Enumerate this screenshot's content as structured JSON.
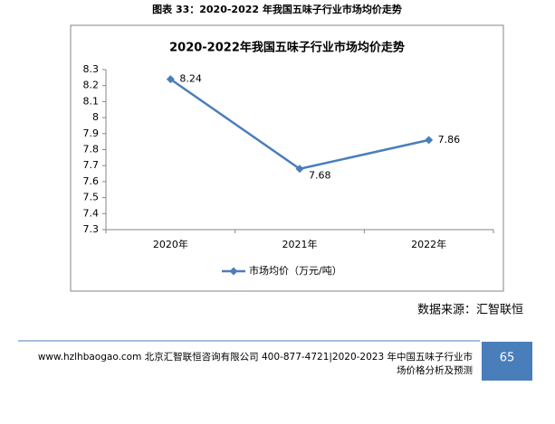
{
  "caption": "图表 33：2020-2022 年我国五味子行业市场均价走势",
  "chart_data": {
    "type": "line",
    "title": "2020-2022年我国五味子行业市场均价走势",
    "categories": [
      "2020年",
      "2021年",
      "2022年"
    ],
    "series": [
      {
        "name": "市场均价（万元/吨）",
        "color": "#4a7ebb",
        "values": [
          8.24,
          7.68,
          7.86
        ]
      }
    ],
    "ylim": [
      7.3,
      8.3
    ],
    "yticks": [
      7.3,
      7.4,
      7.5,
      7.6,
      7.7,
      7.8,
      7.9,
      8,
      8.1,
      8.2,
      8.3
    ],
    "grid": false,
    "legend": "bottom"
  },
  "source": "数据来源：汇智联恒",
  "footer": {
    "lines": [
      "www.hzlhbaogao.com 北京汇智联恒咨询有限公司 400-877-4721|2020-2023 年中国五味子行业市",
      "场价格分析及预测"
    ],
    "page": 65
  }
}
